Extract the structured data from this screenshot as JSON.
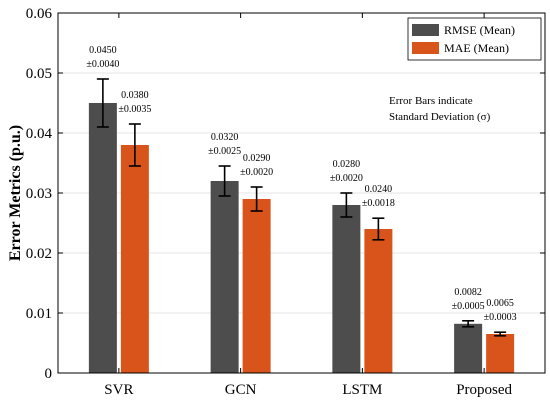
{
  "chart_data": {
    "type": "bar",
    "title": "",
    "xlabel": "",
    "ylabel": "Error Metrics (p.u.)",
    "ylim": [
      0,
      0.06
    ],
    "yticks": [
      "0",
      "0.01",
      "0.02",
      "0.03",
      "0.04",
      "0.05",
      "0.06"
    ],
    "grid": true,
    "legend_position": "top-right",
    "categories": [
      "SVR",
      "GCN",
      "LSTM",
      "Proposed"
    ],
    "series": [
      {
        "name": "RMSE (Mean)",
        "color": "#4d4d4d",
        "values": [
          0.045,
          0.032,
          0.028,
          0.0082
        ],
        "errors": [
          0.004,
          0.0025,
          0.002,
          0.0005
        ],
        "value_labels": [
          "0.0450",
          "0.0320",
          "0.0280",
          "0.0082"
        ],
        "error_labels": [
          "±0.0040",
          "±0.0025",
          "±0.0020",
          "±0.0005"
        ]
      },
      {
        "name": "MAE (Mean)",
        "color": "#d9541a",
        "values": [
          0.038,
          0.029,
          0.024,
          0.0065
        ],
        "errors": [
          0.0035,
          0.002,
          0.0018,
          0.0003
        ],
        "value_labels": [
          "0.0380",
          "0.0290",
          "0.0240",
          "0.0065"
        ],
        "error_labels": [
          "±0.0035",
          "±0.0020",
          "±0.0018",
          "±0.0003"
        ]
      }
    ],
    "annotation": {
      "line1": "Error Bars indicate",
      "line2": "Standard Deviation (σ)"
    }
  }
}
